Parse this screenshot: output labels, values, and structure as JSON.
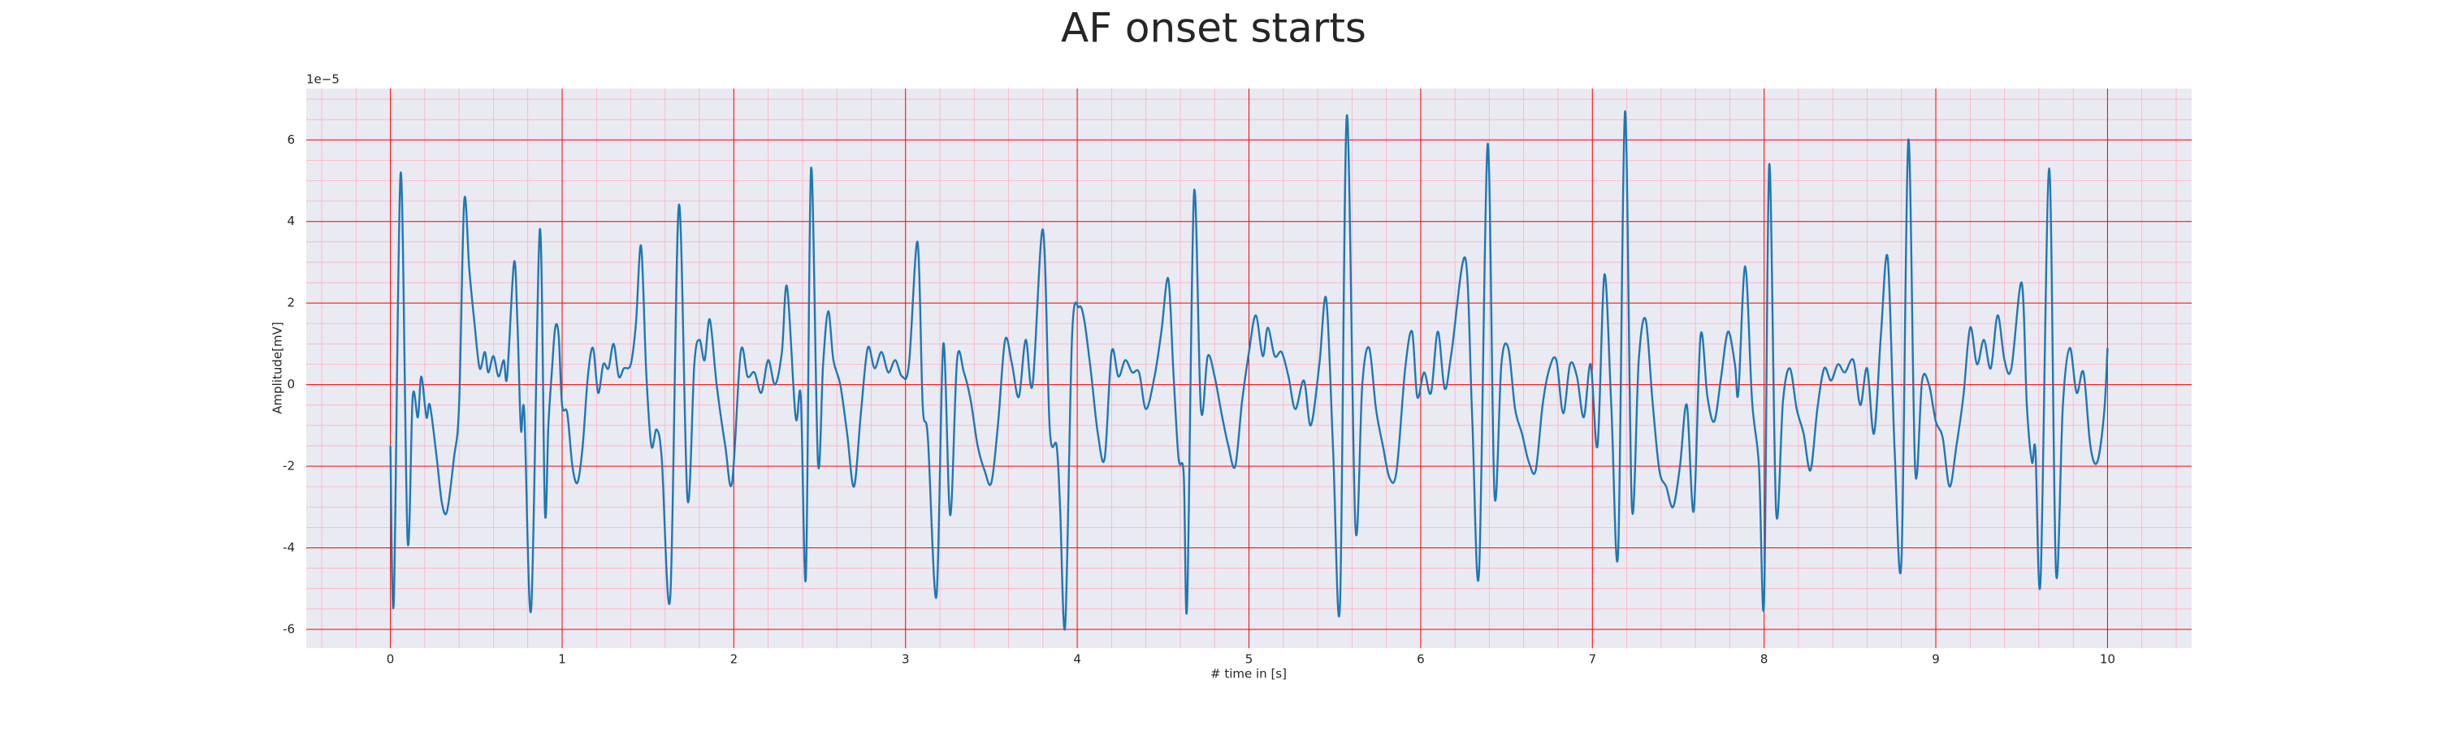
{
  "chart_data": {
    "type": "line",
    "title": "AF onset starts",
    "x_label": "# time in [s]",
    "y_label": "Amplitude[mV]",
    "y_offset_label": "1e−5",
    "xlim": [
      -0.49,
      10.49
    ],
    "ylim": [
      -6.46,
      7.26
    ],
    "xticks": [
      0,
      1,
      2,
      3,
      4,
      5,
      6,
      7,
      8,
      9,
      10
    ],
    "yticks": [
      -6,
      -4,
      -2,
      0,
      2,
      4,
      6
    ],
    "grid": true,
    "grid_color": "#ff0000",
    "minor_grid": true,
    "minor_grid_color": "#ffb0c0",
    "xminor_step": 0.2,
    "yminor_step": 0.5,
    "background": "#eaeaf2",
    "series": [
      {
        "color": "#1f77b4",
        "x": [
          0.0,
          0.02,
          0.06,
          0.1,
          0.13,
          0.16,
          0.18,
          0.21,
          0.23,
          0.27,
          0.3,
          0.33,
          0.37,
          0.4,
          0.43,
          0.46,
          0.49,
          0.52,
          0.55,
          0.57,
          0.6,
          0.63,
          0.66,
          0.68,
          0.72,
          0.74,
          0.76,
          0.78,
          0.82,
          0.87,
          0.9,
          0.92,
          0.94,
          0.96,
          0.98,
          1.0,
          1.03,
          1.06,
          1.09,
          1.12,
          1.15,
          1.18,
          1.21,
          1.24,
          1.27,
          1.3,
          1.33,
          1.36,
          1.4,
          1.43,
          1.46,
          1.49,
          1.52,
          1.55,
          1.58,
          1.63,
          1.68,
          1.73,
          1.77,
          1.8,
          1.83,
          1.86,
          1.9,
          1.95,
          1.99,
          2.04,
          2.08,
          2.12,
          2.16,
          2.2,
          2.24,
          2.28,
          2.31,
          2.36,
          2.39,
          2.42,
          2.45,
          2.49,
          2.52,
          2.55,
          2.58,
          2.62,
          2.66,
          2.7,
          2.74,
          2.78,
          2.82,
          2.86,
          2.9,
          2.94,
          2.98,
          3.02,
          3.07,
          3.1,
          3.13,
          3.18,
          3.22,
          3.26,
          3.3,
          3.34,
          3.38,
          3.42,
          3.46,
          3.5,
          3.54,
          3.58,
          3.62,
          3.66,
          3.7,
          3.74,
          3.8,
          3.84,
          3.88,
          3.9,
          3.93,
          3.97,
          4.01,
          4.04,
          4.08,
          4.12,
          4.16,
          4.2,
          4.24,
          4.28,
          4.32,
          4.36,
          4.4,
          4.45,
          4.49,
          4.53,
          4.56,
          4.59,
          4.62,
          4.64,
          4.68,
          4.72,
          4.76,
          4.8,
          4.84,
          4.88,
          4.92,
          4.96,
          5.0,
          5.04,
          5.08,
          5.11,
          5.15,
          5.19,
          5.23,
          5.27,
          5.32,
          5.36,
          5.41,
          5.45,
          5.49,
          5.53,
          5.57,
          5.62,
          5.66,
          5.7,
          5.74,
          5.78,
          5.82,
          5.86,
          5.91,
          5.95,
          5.98,
          6.02,
          6.06,
          6.1,
          6.14,
          6.18,
          6.26,
          6.3,
          6.34,
          6.39,
          6.43,
          6.47,
          6.51,
          6.55,
          6.59,
          6.63,
          6.67,
          6.71,
          6.75,
          6.79,
          6.83,
          6.87,
          6.91,
          6.95,
          6.99,
          7.03,
          7.07,
          7.11,
          7.15,
          7.19,
          7.23,
          7.27,
          7.31,
          7.35,
          7.39,
          7.43,
          7.47,
          7.51,
          7.55,
          7.59,
          7.63,
          7.67,
          7.71,
          7.75,
          7.79,
          7.83,
          7.85,
          7.89,
          7.93,
          7.97,
          8.0,
          8.03,
          8.07,
          8.11,
          8.15,
          8.19,
          8.23,
          8.27,
          8.31,
          8.35,
          8.39,
          8.43,
          8.47,
          8.52,
          8.56,
          8.6,
          8.64,
          8.68,
          8.72,
          8.76,
          8.8,
          8.84,
          8.88,
          8.92,
          8.96,
          9.0,
          9.04,
          9.08,
          9.12,
          9.16,
          9.2,
          9.24,
          9.28,
          9.32,
          9.36,
          9.4,
          9.44,
          9.5,
          9.53,
          9.56,
          9.58,
          9.61,
          9.66,
          9.7,
          9.74,
          9.78,
          9.82,
          9.86,
          9.9,
          9.94,
          9.98,
          10.0
        ],
        "values": [
          -1.5,
          -5.3,
          5.2,
          -3.8,
          -0.3,
          -0.8,
          0.2,
          -0.8,
          -0.5,
          -1.8,
          -2.9,
          -3.1,
          -1.8,
          -0.5,
          4.5,
          2.8,
          1.5,
          0.4,
          0.8,
          0.3,
          0.7,
          0.2,
          0.6,
          0.2,
          3.0,
          1.5,
          -1.1,
          -0.7,
          -5.5,
          3.8,
          -3.1,
          -1.0,
          0.3,
          1.4,
          1.2,
          -0.5,
          -0.7,
          -2.0,
          -2.4,
          -1.5,
          0.2,
          0.9,
          -0.2,
          0.5,
          0.4,
          1.0,
          0.2,
          0.4,
          0.5,
          1.5,
          3.4,
          0.3,
          -1.5,
          -1.1,
          -1.8,
          -5.2,
          4.4,
          -2.8,
          0.5,
          1.1,
          0.6,
          1.6,
          0.0,
          -1.5,
          -2.4,
          0.8,
          0.2,
          0.3,
          -0.2,
          0.6,
          0.0,
          0.8,
          2.4,
          -0.8,
          -0.3,
          -4.7,
          5.3,
          -1.9,
          0.5,
          1.8,
          0.6,
          0.0,
          -1.2,
          -2.5,
          -0.7,
          0.9,
          0.4,
          0.8,
          0.3,
          0.6,
          0.2,
          0.5,
          3.5,
          -0.5,
          -1.3,
          -5.2,
          1.0,
          -3.2,
          0.6,
          0.3,
          -0.4,
          -1.5,
          -2.1,
          -2.4,
          -0.9,
          1.1,
          0.5,
          -0.3,
          1.1,
          0.0,
          3.8,
          -1.1,
          -1.5,
          -3.0,
          -5.9,
          1.2,
          1.9,
          1.6,
          0.3,
          -1.2,
          -1.8,
          0.8,
          0.2,
          0.6,
          0.3,
          0.3,
          -0.6,
          0.2,
          1.3,
          2.6,
          0.3,
          -1.8,
          -2.2,
          -5.4,
          4.7,
          -0.6,
          0.7,
          0.2,
          -0.7,
          -1.5,
          -2.0,
          -0.4,
          0.8,
          1.7,
          0.7,
          1.4,
          0.7,
          0.8,
          0.2,
          -0.6,
          0.1,
          -1.0,
          0.5,
          2.1,
          -1.6,
          -5.4,
          6.6,
          -3.5,
          0.0,
          0.9,
          -0.6,
          -1.5,
          -2.3,
          -2.1,
          0.4,
          1.3,
          -0.3,
          0.3,
          -0.2,
          1.3,
          -0.1,
          0.8,
          3.1,
          -0.8,
          -4.6,
          5.9,
          -2.7,
          0.5,
          0.9,
          -0.6,
          -1.2,
          -1.9,
          -2.1,
          -0.5,
          0.4,
          0.6,
          -0.7,
          0.5,
          0.2,
          -0.8,
          0.5,
          -1.5,
          2.7,
          -0.5,
          -4.1,
          6.7,
          -3.0,
          0.6,
          1.6,
          -0.4,
          -2.1,
          -2.5,
          -3.0,
          -2.0,
          -0.5,
          -3.1,
          1.2,
          -0.3,
          -0.9,
          0.2,
          1.3,
          0.5,
          -0.2,
          2.9,
          -0.4,
          -2.0,
          -5.3,
          5.4,
          -3.1,
          -0.4,
          0.4,
          -0.6,
          -1.2,
          -2.1,
          -0.6,
          0.4,
          0.1,
          0.5,
          0.3,
          0.6,
          -0.5,
          0.4,
          -1.2,
          1.2,
          3.1,
          -1.6,
          -4.3,
          6.0,
          -2.1,
          0.1,
          0.0,
          -0.9,
          -1.3,
          -2.5,
          -1.5,
          -0.3,
          1.4,
          0.5,
          1.1,
          0.4,
          1.7,
          0.6,
          0.4,
          2.5,
          -0.5,
          -1.9,
          -1.6,
          -4.8,
          5.3,
          -4.6,
          -0.5,
          0.9,
          -0.2,
          0.3,
          -1.5,
          -1.9,
          -0.7,
          0.9
        ]
      }
    ]
  }
}
